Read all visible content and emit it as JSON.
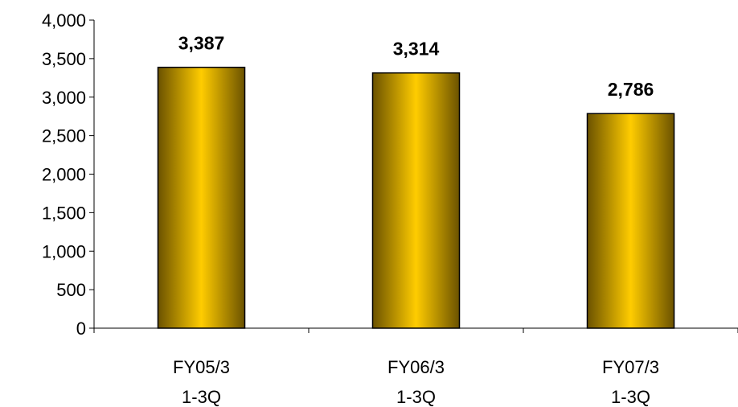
{
  "chart_data": {
    "type": "bar",
    "title": "",
    "xlabel": "",
    "ylabel": "",
    "categories": [
      [
        "FY05/3",
        "1-3Q"
      ],
      [
        "FY06/3",
        "1-3Q"
      ],
      [
        "FY07/3",
        "1-3Q"
      ]
    ],
    "values": [
      3387,
      3314,
      2786
    ],
    "value_labels": [
      "3,387",
      "3,314",
      "2,786"
    ],
    "ylim": [
      0,
      4000
    ],
    "yticks": [
      0,
      500,
      1000,
      1500,
      2000,
      2500,
      3000,
      3500,
      4000
    ],
    "ytick_labels": [
      "0",
      "500",
      "1,000",
      "1,500",
      "2,000",
      "2,500",
      "3,000",
      "3,500",
      "4,000"
    ],
    "grid": false,
    "legend": "none",
    "colors": {
      "bar_center": "#FFCC00",
      "bar_edge": "#6B5200",
      "axis": "#000000"
    }
  }
}
